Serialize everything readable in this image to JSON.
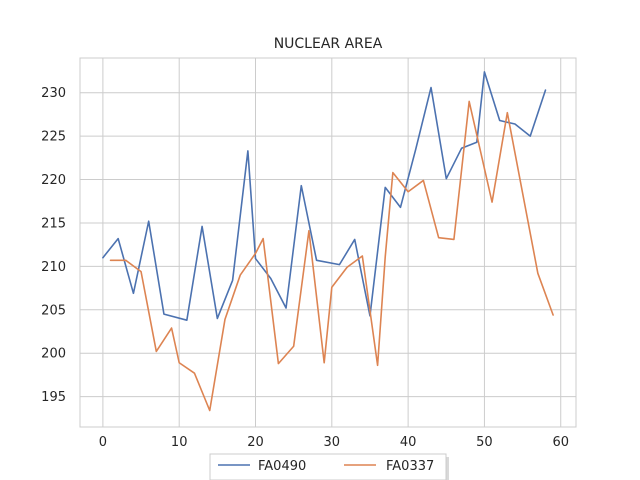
{
  "chart_data": {
    "type": "line",
    "title": "NUCLEAR AREA",
    "xlabel": "",
    "ylabel": "",
    "xlim": [
      -3,
      62
    ],
    "ylim": [
      191.5,
      234
    ],
    "xticks": [
      0,
      10,
      20,
      30,
      40,
      50,
      60
    ],
    "yticks": [
      195,
      200,
      205,
      210,
      215,
      220,
      225,
      230
    ],
    "grid": true,
    "legend_position": "bottom-center",
    "series": [
      {
        "name": "FA0490",
        "color": "#4c72b0",
        "x": [
          0,
          2,
          4,
          6,
          8,
          11,
          13,
          15,
          17,
          19,
          20,
          22,
          24,
          26,
          28,
          31,
          33,
          35,
          37,
          39,
          41,
          43,
          45,
          47,
          49,
          50,
          52,
          54,
          56,
          58
        ],
        "y": [
          211.0,
          213.2,
          206.9,
          215.2,
          204.5,
          203.8,
          214.6,
          204.0,
          208.4,
          223.3,
          210.9,
          208.6,
          205.2,
          219.3,
          210.7,
          210.2,
          213.1,
          204.3,
          219.1,
          216.8,
          223.5,
          230.6,
          220.1,
          223.6,
          224.3,
          232.4,
          226.8,
          226.4,
          225.0,
          230.3
        ]
      },
      {
        "name": "FA0337",
        "color": "#dd8452",
        "x": [
          1,
          3,
          5,
          7,
          9,
          10,
          12,
          14,
          16,
          18,
          20,
          21,
          23,
          25,
          27,
          29,
          30,
          32,
          34,
          36,
          37,
          38,
          40,
          42,
          44,
          46,
          48,
          51,
          53,
          57,
          59
        ],
        "y": [
          210.7,
          210.7,
          209.4,
          200.2,
          202.9,
          198.9,
          197.7,
          193.4,
          203.9,
          209.0,
          211.5,
          213.2,
          198.8,
          200.8,
          214.1,
          198.9,
          207.6,
          209.9,
          211.2,
          198.6,
          211.1,
          220.8,
          218.6,
          219.9,
          213.3,
          213.1,
          229.0,
          217.4,
          227.7,
          209.2,
          204.4
        ]
      }
    ]
  }
}
